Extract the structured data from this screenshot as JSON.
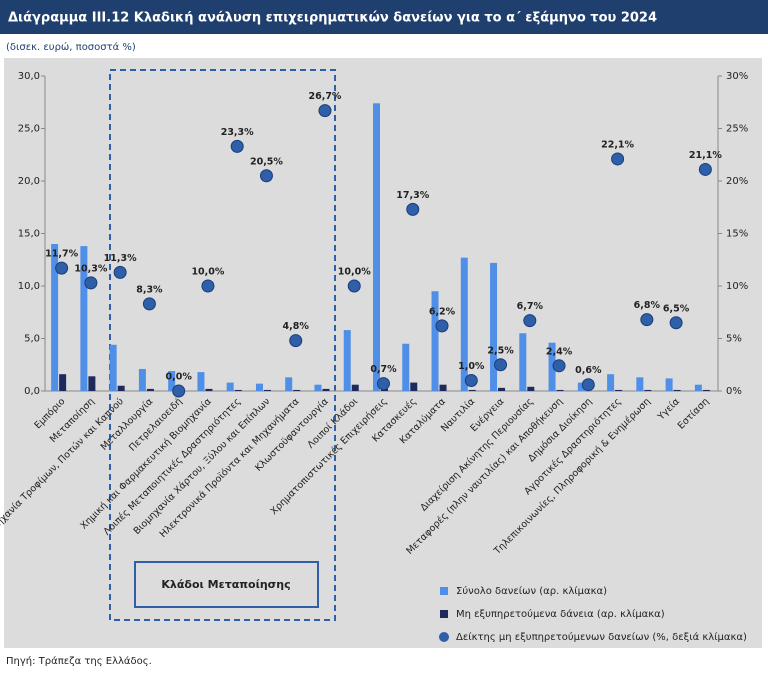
{
  "chart_data": {
    "type": "bar",
    "title": "Διάγραμμα ΙΙΙ.12 Κλαδική ανάλυση επιχειρηματικών δανείων για το α΄ εξάμηνο του 2024",
    "subtitle": "(δισεκ. ευρώ, ποσοστά %)",
    "source": "Πηγή: Τράπεζα της Ελλάδος.",
    "annotation": "Κλάδοι Μεταποίησης",
    "categories": [
      "Εμπόριο",
      "Μεταποίηση",
      "Βιομηχανία Τροφίμων, Ποτών και Καπνού",
      "Μεταλλουργία",
      "Πετρελαιοειδή",
      "Χημική και Φαρμακευτική Βιομηχανία",
      "Λοιπές Μεταποιητικές Δραστηριότητες",
      "Βιομηχανία Χάρτου, Ξύλου και Επίπλων",
      "Ηλεκτρονικά Προϊόντα και Μηχανήματα",
      "Κλωστοϋφαντουργία",
      "Λοιποί Κλάδοι",
      "Χρηματοπιστωτικές Επιχειρήσεις",
      "Κατασκευές",
      "Καταλύματα",
      "Ναυτιλία",
      "Ενέργεια",
      "Διαχείριση Ακίνητης Περιουσίας",
      "Μεταφορές (πλην ναυτιλίας) και Αποθήκευση",
      "Δημόσια Διοίκηση",
      "Αγροτικές Δραστηριότητες",
      "Τηλεπικοινωνίες, Πληροφορική & Ενημέρωση",
      "Υγεία",
      "Εστίαση"
    ],
    "series": [
      {
        "name": "Σύνολο δανείων (αρ. κλίμακα)",
        "type": "bar",
        "color": "#4f8fe8",
        "values": [
          14.0,
          13.8,
          4.4,
          2.1,
          1.9,
          1.8,
          0.8,
          0.7,
          1.3,
          0.6,
          5.8,
          27.4,
          4.5,
          9.5,
          12.7,
          12.2,
          5.5,
          4.6,
          0.8,
          1.6,
          1.3,
          1.2,
          0.6
        ]
      },
      {
        "name": "Μη εξυπηρετούμενα δάνεια (αρ. κλίμακα)",
        "type": "bar",
        "color": "#1f2a5c",
        "values": [
          1.6,
          1.4,
          0.5,
          0.2,
          0.0,
          0.2,
          0.1,
          0.1,
          0.1,
          0.2,
          0.6,
          0.2,
          0.8,
          0.6,
          0.1,
          0.3,
          0.4,
          0.1,
          0.0,
          0.1,
          0.1,
          0.1,
          0.1
        ]
      },
      {
        "name": "Δείκτης μη εξυπηρετούμενων δανείων (%, δεξιά κλίμακα)",
        "type": "scatter",
        "axis": "y2",
        "color": "#2e5fa8",
        "values": [
          11.7,
          10.3,
          11.3,
          8.3,
          0.0,
          10.0,
          23.3,
          20.5,
          4.8,
          26.7,
          10.0,
          0.7,
          17.3,
          6.2,
          1.0,
          2.5,
          6.7,
          2.4,
          0.6,
          22.1,
          6.8,
          6.5,
          21.1
        ],
        "value_labels": [
          "11,7%",
          "10,3%",
          "11,3%",
          "8,3%",
          "0,0%",
          "10,0%",
          "23,3%",
          "20,5%",
          "4,8%",
          "26,7%",
          "10,0%",
          "0,7%",
          "17,3%",
          "6,2%",
          "1,0%",
          "2,5%",
          "6,7%",
          "2,4%",
          "0,6%",
          "22,1%",
          "6,8%",
          "6,5%",
          "21,1%"
        ]
      }
    ],
    "ylim": [
      0,
      30
    ],
    "yticks": [
      {
        "value": 0,
        "label": "0,0"
      },
      {
        "value": 5,
        "label": "5,0"
      },
      {
        "value": 10,
        "label": "10,0"
      },
      {
        "value": 15,
        "label": "15,0"
      },
      {
        "value": 20,
        "label": "20,0"
      },
      {
        "value": 25,
        "label": "25,0"
      },
      {
        "value": 30,
        "label": "30,0"
      }
    ],
    "y2lim": [
      0,
      30
    ],
    "y2ticks": [
      {
        "value": 0,
        "label": "0%"
      },
      {
        "value": 5,
        "label": "5%"
      },
      {
        "value": 10,
        "label": "10%"
      },
      {
        "value": 15,
        "label": "15%"
      },
      {
        "value": 20,
        "label": "20%"
      },
      {
        "value": 25,
        "label": "25%"
      },
      {
        "value": 30,
        "label": "30%"
      }
    ]
  }
}
